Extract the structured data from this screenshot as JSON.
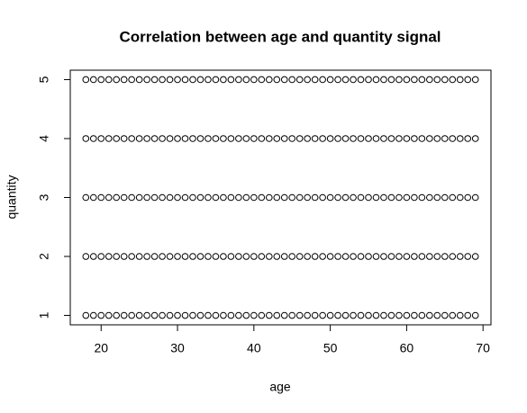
{
  "chart_data": {
    "type": "scatter",
    "title": "Correlation between age and quantity signal",
    "xlabel": "age",
    "ylabel": "quantity",
    "x": [
      18,
      19,
      20,
      21,
      22,
      23,
      24,
      25,
      26,
      27,
      28,
      29,
      30,
      31,
      32,
      33,
      34,
      35,
      36,
      37,
      38,
      39,
      40,
      41,
      42,
      43,
      44,
      45,
      46,
      47,
      48,
      49,
      50,
      51,
      52,
      53,
      54,
      55,
      56,
      57,
      58,
      59,
      60,
      61,
      62,
      63,
      64,
      65,
      66,
      67,
      68,
      69,
      18,
      19,
      20,
      21,
      22,
      23,
      24,
      25,
      26,
      27,
      28,
      29,
      30,
      31,
      32,
      33,
      34,
      35,
      36,
      37,
      38,
      39,
      40,
      41,
      42,
      43,
      44,
      45,
      46,
      47,
      48,
      49,
      50,
      51,
      52,
      53,
      54,
      55,
      56,
      57,
      58,
      59,
      60,
      61,
      62,
      63,
      64,
      65,
      66,
      67,
      68,
      69,
      18,
      19,
      20,
      21,
      22,
      23,
      24,
      25,
      26,
      27,
      28,
      29,
      30,
      31,
      32,
      33,
      34,
      35,
      36,
      37,
      38,
      39,
      40,
      41,
      42,
      43,
      44,
      45,
      46,
      47,
      48,
      49,
      50,
      51,
      52,
      53,
      54,
      55,
      56,
      57,
      58,
      59,
      60,
      61,
      62,
      63,
      64,
      65,
      66,
      67,
      68,
      69,
      18,
      19,
      20,
      21,
      22,
      23,
      24,
      25,
      26,
      27,
      28,
      29,
      30,
      31,
      32,
      33,
      34,
      35,
      36,
      37,
      38,
      39,
      40,
      41,
      42,
      43,
      44,
      45,
      46,
      47,
      48,
      49,
      50,
      51,
      52,
      53,
      54,
      55,
      56,
      57,
      58,
      59,
      60,
      61,
      62,
      63,
      64,
      65,
      66,
      67,
      68,
      69,
      18,
      19,
      20,
      21,
      22,
      23,
      24,
      25,
      26,
      27,
      28,
      29,
      30,
      31,
      32,
      33,
      34,
      35,
      36,
      37,
      38,
      39,
      40,
      41,
      42,
      43,
      44,
      45,
      46,
      47,
      48,
      49,
      50,
      51,
      52,
      53,
      54,
      55,
      56,
      57,
      58,
      59,
      60,
      61,
      62,
      63,
      64,
      65,
      66,
      67,
      68,
      69
    ],
    "y": [
      1,
      1,
      1,
      1,
      1,
      1,
      1,
      1,
      1,
      1,
      1,
      1,
      1,
      1,
      1,
      1,
      1,
      1,
      1,
      1,
      1,
      1,
      1,
      1,
      1,
      1,
      1,
      1,
      1,
      1,
      1,
      1,
      1,
      1,
      1,
      1,
      1,
      1,
      1,
      1,
      1,
      1,
      1,
      1,
      1,
      1,
      1,
      1,
      1,
      1,
      1,
      1,
      2,
      2,
      2,
      2,
      2,
      2,
      2,
      2,
      2,
      2,
      2,
      2,
      2,
      2,
      2,
      2,
      2,
      2,
      2,
      2,
      2,
      2,
      2,
      2,
      2,
      2,
      2,
      2,
      2,
      2,
      2,
      2,
      2,
      2,
      2,
      2,
      2,
      2,
      2,
      2,
      2,
      2,
      2,
      2,
      2,
      2,
      2,
      2,
      2,
      2,
      2,
      2,
      3,
      3,
      3,
      3,
      3,
      3,
      3,
      3,
      3,
      3,
      3,
      3,
      3,
      3,
      3,
      3,
      3,
      3,
      3,
      3,
      3,
      3,
      3,
      3,
      3,
      3,
      3,
      3,
      3,
      3,
      3,
      3,
      3,
      3,
      3,
      3,
      3,
      3,
      3,
      3,
      3,
      3,
      3,
      3,
      3,
      3,
      3,
      3,
      3,
      3,
      3,
      3,
      4,
      4,
      4,
      4,
      4,
      4,
      4,
      4,
      4,
      4,
      4,
      4,
      4,
      4,
      4,
      4,
      4,
      4,
      4,
      4,
      4,
      4,
      4,
      4,
      4,
      4,
      4,
      4,
      4,
      4,
      4,
      4,
      4,
      4,
      4,
      4,
      4,
      4,
      4,
      4,
      4,
      4,
      4,
      4,
      4,
      4,
      4,
      4,
      4,
      4,
      4,
      4,
      5,
      5,
      5,
      5,
      5,
      5,
      5,
      5,
      5,
      5,
      5,
      5,
      5,
      5,
      5,
      5,
      5,
      5,
      5,
      5,
      5,
      5,
      5,
      5,
      5,
      5,
      5,
      5,
      5,
      5,
      5,
      5,
      5,
      5,
      5,
      5,
      5,
      5,
      5,
      5,
      5,
      5,
      5,
      5,
      5,
      5,
      5,
      5,
      5,
      5,
      5,
      5
    ],
    "color": "#000000",
    "xlim": [
      15.96,
      71.04
    ],
    "xticks": [
      20,
      30,
      40,
      50,
      60,
      70
    ],
    "ylim": [
      0.84,
      5.16
    ],
    "yticks": [
      1,
      2,
      3,
      4,
      5
    ]
  }
}
